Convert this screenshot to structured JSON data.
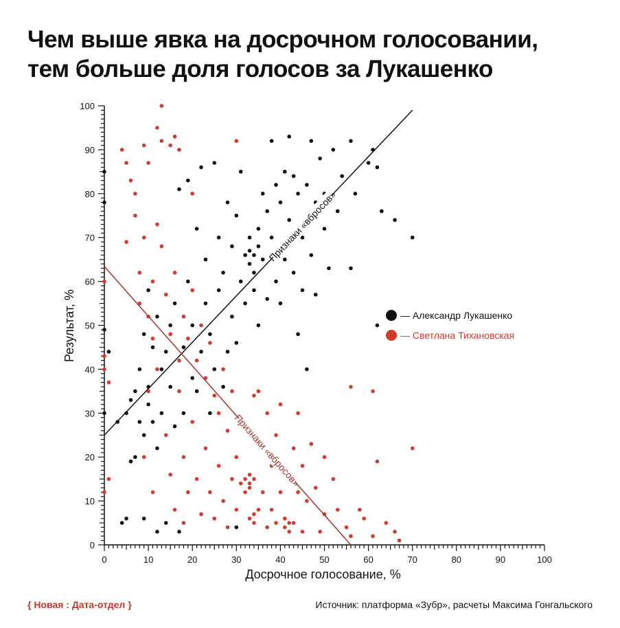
{
  "chart_data": {
    "type": "scatter",
    "title": "Чем выше явка на досрочном голосовании, тем больше доля голосов за Лукашенко",
    "title_lines": [
      "Чем выше явка на досрочном голосовании,",
      "тем больше доля голосов за Лукашенко"
    ],
    "xlabel": "Досрочное голосование, %",
    "ylabel": "Результат, %",
    "xlim": [
      0,
      100
    ],
    "ylim": [
      0,
      100
    ],
    "x_ticks": [
      0,
      10,
      20,
      30,
      40,
      50,
      60,
      70,
      80,
      90,
      100
    ],
    "y_ticks": [
      0,
      10,
      20,
      30,
      40,
      50,
      60,
      70,
      80,
      90,
      100
    ],
    "grid": false,
    "legend_position": "right",
    "series": [
      {
        "name": "Александр Лукашенко",
        "legend_label": "— Александр Лукашенко",
        "color": "#111111",
        "points": [
          [
            0,
            85
          ],
          [
            0,
            78
          ],
          [
            0,
            49
          ],
          [
            0,
            30
          ],
          [
            1,
            44
          ],
          [
            4,
            5
          ],
          [
            5,
            6
          ],
          [
            3,
            28
          ],
          [
            5,
            30
          ],
          [
            6,
            19
          ],
          [
            7,
            20
          ],
          [
            6,
            33
          ],
          [
            7,
            35
          ],
          [
            8,
            28
          ],
          [
            8,
            40
          ],
          [
            9,
            6
          ],
          [
            9,
            25
          ],
          [
            9,
            48
          ],
          [
            10,
            32
          ],
          [
            10,
            36
          ],
          [
            10,
            58
          ],
          [
            11,
            45
          ],
          [
            11,
            28
          ],
          [
            12,
            3
          ],
          [
            12,
            22
          ],
          [
            12,
            52
          ],
          [
            13,
            30
          ],
          [
            13,
            40
          ],
          [
            14,
            5
          ],
          [
            14,
            44
          ],
          [
            15,
            36
          ],
          [
            15,
            50
          ],
          [
            16,
            27
          ],
          [
            16,
            55
          ],
          [
            17,
            3
          ],
          [
            17,
            81
          ],
          [
            18,
            45
          ],
          [
            18,
            30
          ],
          [
            19,
            60
          ],
          [
            19,
            83
          ],
          [
            20,
            38
          ],
          [
            20,
            50
          ],
          [
            21,
            35
          ],
          [
            21,
            72
          ],
          [
            22,
            44
          ],
          [
            22,
            86
          ],
          [
            23,
            55
          ],
          [
            23,
            65
          ],
          [
            24,
            30
          ],
          [
            24,
            48
          ],
          [
            25,
            40
          ],
          [
            25,
            87
          ],
          [
            26,
            58
          ],
          [
            26,
            70
          ],
          [
            27,
            36
          ],
          [
            27,
            62
          ],
          [
            28,
            44
          ],
          [
            28,
            78
          ],
          [
            29,
            52
          ],
          [
            29,
            68
          ],
          [
            30,
            4
          ],
          [
            30,
            46
          ],
          [
            30,
            75
          ],
          [
            31,
            60
          ],
          [
            31,
            85
          ],
          [
            32,
            66
          ],
          [
            32,
            55
          ],
          [
            33,
            67
          ],
          [
            33,
            64
          ],
          [
            33,
            70
          ],
          [
            34,
            66
          ],
          [
            34,
            62
          ],
          [
            34,
            58
          ],
          [
            35,
            68
          ],
          [
            35,
            72
          ],
          [
            35,
            50
          ],
          [
            36,
            65
          ],
          [
            36,
            80
          ],
          [
            37,
            56
          ],
          [
            37,
            76
          ],
          [
            38,
            70
          ],
          [
            38,
            92
          ],
          [
            39,
            82
          ],
          [
            39,
            60
          ],
          [
            40,
            78
          ],
          [
            40,
            55
          ],
          [
            41,
            85
          ],
          [
            41,
            65
          ],
          [
            42,
            93
          ],
          [
            42,
            74
          ],
          [
            43,
            84
          ],
          [
            43,
            62
          ],
          [
            44,
            80
          ],
          [
            44,
            48
          ],
          [
            45,
            70
          ],
          [
            45,
            58
          ],
          [
            46,
            82
          ],
          [
            46,
            40
          ],
          [
            47,
            92
          ],
          [
            47,
            66
          ],
          [
            48,
            78
          ],
          [
            48,
            57
          ],
          [
            49,
            88
          ],
          [
            50,
            72
          ],
          [
            50,
            80
          ],
          [
            51,
            63
          ],
          [
            52,
            90
          ],
          [
            53,
            76
          ],
          [
            54,
            84
          ],
          [
            56,
            92
          ],
          [
            56,
            63
          ],
          [
            57,
            80
          ],
          [
            60,
            87
          ],
          [
            61,
            90
          ],
          [
            62,
            50
          ],
          [
            62,
            86
          ],
          [
            63,
            76
          ],
          [
            66,
            74
          ],
          [
            70,
            70
          ]
        ]
      },
      {
        "name": "Светлана Тихановская",
        "legend_label": "— Светлана Тихановская",
        "color": "#d23a2a",
        "points": [
          [
            0,
            60
          ],
          [
            0,
            43
          ],
          [
            0,
            40
          ],
          [
            0,
            12
          ],
          [
            1,
            37
          ],
          [
            1,
            15
          ],
          [
            4,
            90
          ],
          [
            5,
            87
          ],
          [
            5,
            69
          ],
          [
            6,
            83
          ],
          [
            7,
            75
          ],
          [
            7,
            80
          ],
          [
            8,
            55
          ],
          [
            8,
            62
          ],
          [
            9,
            91
          ],
          [
            9,
            70
          ],
          [
            9,
            20
          ],
          [
            10,
            87
          ],
          [
            10,
            52
          ],
          [
            10,
            35
          ],
          [
            11,
            60
          ],
          [
            11,
            47
          ],
          [
            11,
            12
          ],
          [
            12,
            95
          ],
          [
            12,
            73
          ],
          [
            12,
            40
          ],
          [
            13,
            100
          ],
          [
            13,
            68
          ],
          [
            13,
            92
          ],
          [
            14,
            57
          ],
          [
            14,
            25
          ],
          [
            15,
            91
          ],
          [
            15,
            48
          ],
          [
            15,
            16
          ],
          [
            16,
            93
          ],
          [
            16,
            62
          ],
          [
            16,
            8
          ],
          [
            17,
            90
          ],
          [
            17,
            42
          ],
          [
            17,
            35
          ],
          [
            18,
            52
          ],
          [
            18,
            20
          ],
          [
            18,
            5
          ],
          [
            19,
            47
          ],
          [
            19,
            12
          ],
          [
            20,
            80
          ],
          [
            20,
            58
          ],
          [
            20,
            28
          ],
          [
            21,
            42
          ],
          [
            21,
            15
          ],
          [
            22,
            50
          ],
          [
            22,
            7
          ],
          [
            23,
            38
          ],
          [
            23,
            22
          ],
          [
            24,
            46
          ],
          [
            24,
            12
          ],
          [
            25,
            34
          ],
          [
            25,
            6
          ],
          [
            26,
            30
          ],
          [
            26,
            18
          ],
          [
            27,
            40
          ],
          [
            27,
            10
          ],
          [
            28,
            26
          ],
          [
            28,
            4
          ],
          [
            29,
            35
          ],
          [
            29,
            15
          ],
          [
            30,
            92
          ],
          [
            30,
            20
          ],
          [
            30,
            8
          ],
          [
            31,
            14
          ],
          [
            31,
            28
          ],
          [
            32,
            15
          ],
          [
            32,
            12
          ],
          [
            33,
            14
          ],
          [
            33,
            16
          ],
          [
            33,
            13
          ],
          [
            34,
            15
          ],
          [
            34,
            7
          ],
          [
            34,
            5
          ],
          [
            33,
            6
          ],
          [
            35,
            35
          ],
          [
            35,
            8
          ],
          [
            34,
            34
          ],
          [
            36,
            22
          ],
          [
            36,
            12
          ],
          [
            37,
            30
          ],
          [
            37,
            4
          ],
          [
            38,
            18
          ],
          [
            38,
            8
          ],
          [
            39,
            25
          ],
          [
            39,
            5
          ],
          [
            40,
            32
          ],
          [
            40,
            12
          ],
          [
            41,
            6
          ],
          [
            41,
            4
          ],
          [
            42,
            5
          ],
          [
            42,
            3
          ],
          [
            43,
            5
          ],
          [
            43,
            22
          ],
          [
            44,
            12
          ],
          [
            44,
            30
          ],
          [
            45,
            18
          ],
          [
            45,
            3
          ],
          [
            46,
            10
          ],
          [
            47,
            23
          ],
          [
            48,
            13
          ],
          [
            49,
            3
          ],
          [
            50,
            20
          ],
          [
            50,
            7
          ],
          [
            52,
            15
          ],
          [
            53,
            8
          ],
          [
            55,
            4
          ],
          [
            56,
            36
          ],
          [
            56,
            2
          ],
          [
            58,
            8
          ],
          [
            59,
            6
          ],
          [
            61,
            35
          ],
          [
            61,
            2
          ],
          [
            62,
            19
          ],
          [
            64,
            5
          ],
          [
            66,
            3
          ],
          [
            67,
            1
          ],
          [
            70,
            22
          ]
        ]
      }
    ],
    "annotations": [
      {
        "text": "Признаки «вбросов»",
        "series": "Александр Лукашенко",
        "line": [
          [
            0,
            25
          ],
          [
            70,
            99
          ]
        ],
        "label_x": 45,
        "color": "#111111"
      },
      {
        "text": "Признаки «вбросов»",
        "series": "Светлана Тихановская",
        "line": [
          [
            0,
            63.4
          ],
          [
            56,
            0
          ]
        ],
        "label_x": 37,
        "color": "#a8322a"
      }
    ]
  },
  "footer": {
    "brand": "{ Новая : Дата-отдел }",
    "source": "Источник: платформа «Зубр», расчеты Максима Гонгальского"
  }
}
